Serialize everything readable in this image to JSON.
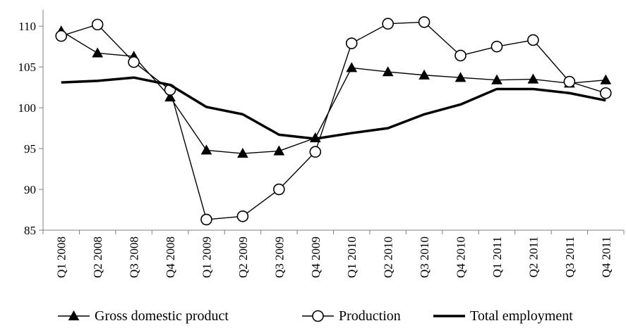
{
  "chart_data": {
    "type": "line",
    "title": "",
    "xlabel": "",
    "ylabel": "",
    "ylim": [
      85,
      112
    ],
    "y_ticks": [
      85,
      90,
      95,
      100,
      105,
      110
    ],
    "y_tick_labels": [
      "85",
      "90",
      "95",
      "100",
      "105",
      "110"
    ],
    "grid": false,
    "legend_position": "bottom",
    "categories": [
      "Q1 2008",
      "Q2 2008",
      "Q3 2008",
      "Q4 2008",
      "Q1 2009",
      "Q2 2009",
      "Q3 2009",
      "Q4 2009",
      "Q1 2010",
      "Q2 2010",
      "Q3 2010",
      "Q4 2010",
      "Q1 2011",
      "Q2 2011",
      "Q3 2011",
      "Q4 2011"
    ],
    "series": [
      {
        "name": "Gross domestic product",
        "marker": "filled-triangle",
        "color": "#000000",
        "values": [
          109.4,
          106.7,
          106.3,
          101.3,
          94.8,
          94.4,
          94.7,
          96.3,
          104.9,
          104.4,
          104.0,
          103.7,
          103.4,
          103.5,
          103.0,
          103.4
        ]
      },
      {
        "name": "Production",
        "marker": "open-circle",
        "color": "#000000",
        "values": [
          108.8,
          110.2,
          105.6,
          102.2,
          86.3,
          86.7,
          90.0,
          94.6,
          107.9,
          110.3,
          110.5,
          106.4,
          107.5,
          108.3,
          103.2,
          101.8
        ]
      },
      {
        "name": "Total employment",
        "marker": "none",
        "color": "#000000",
        "values": [
          103.1,
          103.3,
          103.7,
          102.8,
          100.1,
          99.2,
          96.7,
          96.2,
          96.9,
          97.5,
          99.2,
          100.4,
          102.3,
          102.3,
          101.8,
          100.9
        ]
      }
    ]
  }
}
